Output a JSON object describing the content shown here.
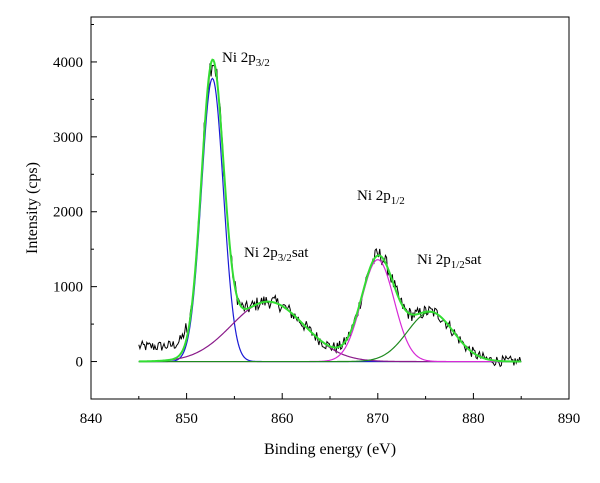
{
  "chart_data": {
    "type": "line",
    "xlabel": "Binding energy (eV)",
    "ylabel": "Intensity (cps)",
    "xlim": [
      840,
      890
    ],
    "ylim": [
      -500,
      4600
    ],
    "xticks": [
      840,
      850,
      860,
      870,
      880,
      890
    ],
    "yticks": [
      0,
      1000,
      2000,
      3000,
      4000
    ],
    "grid": false,
    "colors": {
      "raw": "#000000",
      "envelope": "#33dd33",
      "ni2p32": "#1a1ad6",
      "ni2p32sat": "#8a1a8a",
      "ni2p12": "#d62ad6",
      "ni2p12sat": "#1e8a1e",
      "baseline": "#1e8a1e"
    },
    "peaks": [
      {
        "label_main": "Ni 2p",
        "sub": "3/2",
        "suffix": "",
        "center": 852.7,
        "height": 3780,
        "sigma": 1.15,
        "series": "ni2p32"
      },
      {
        "label_main": "Ni 2p",
        "sub": "3/2",
        "suffix": "sat",
        "center": 858.5,
        "height": 800,
        "sigma": 3.8,
        "series": "ni2p32sat"
      },
      {
        "label_main": "Ni 2p",
        "sub": "1/2",
        "suffix": "",
        "center": 870.0,
        "height": 1360,
        "sigma": 1.7,
        "series": "ni2p12"
      },
      {
        "label_main": "Ni 2p",
        "sub": "1/2",
        "suffix": "sat",
        "center": 875.5,
        "height": 660,
        "sigma": 2.4,
        "series": "ni2p12sat"
      }
    ],
    "x_range_fit": [
      845,
      885
    ],
    "raw_noise_amplitude": 120,
    "raw_baseline_left": 200,
    "raw_baseline_right": 80
  }
}
